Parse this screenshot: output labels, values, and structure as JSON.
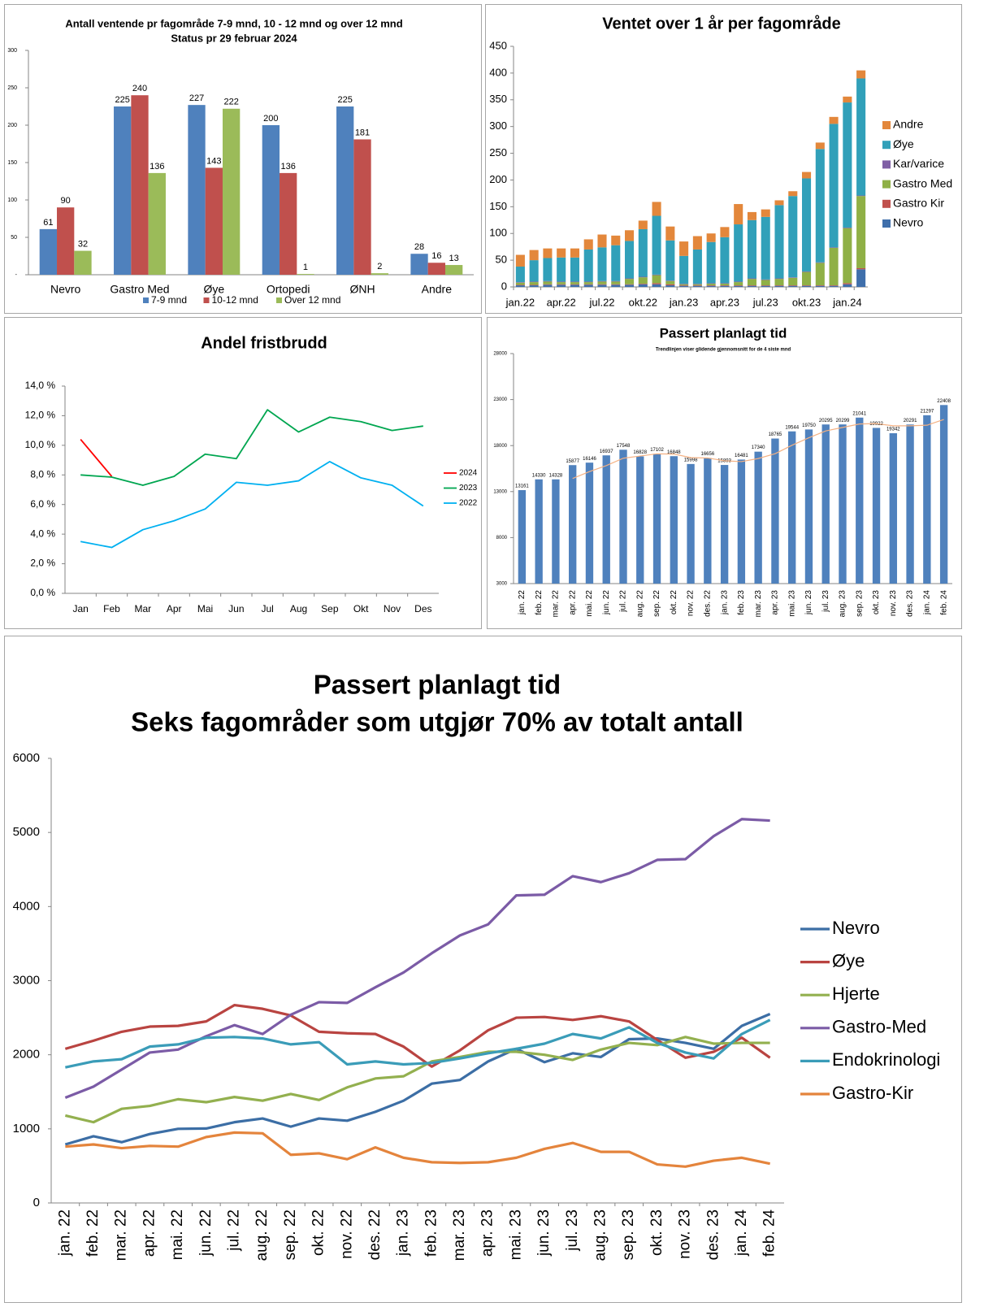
{
  "chart_data": [
    {
      "type": "bar",
      "title": "Antall ventende pr fagområde 7-9 mnd, 10 - 12 mnd og over 12 mnd",
      "subtitle": "Status pr 29 februar 2024",
      "categories": [
        "Nevro",
        "Gastro Med",
        "Øye",
        "Ortopedi",
        "ØNH",
        "Andre"
      ],
      "series": [
        {
          "name": "7-9 mnd",
          "color": "#4f81bd",
          "values": [
            61,
            225,
            227,
            200,
            225,
            28
          ]
        },
        {
          "name": "10-12 mnd",
          "color": "#c0504d",
          "values": [
            90,
            240,
            143,
            136,
            181,
            16
          ]
        },
        {
          "name": "Over 12 mnd",
          "color": "#9bbb59",
          "values": [
            32,
            136,
            222,
            1,
            2,
            13
          ]
        }
      ],
      "ylim": [
        0,
        300
      ],
      "yticks": [
        {
          "value": 0,
          "label": "-"
        },
        50,
        100,
        150,
        200,
        250,
        300
      ],
      "data_labels": true,
      "legend": "bottom"
    },
    {
      "type": "bar",
      "stacked": true,
      "title": "Ventet over 1 år per fagområde",
      "categories": [
        "jan.22",
        null,
        null,
        "apr.22",
        null,
        null,
        "jul.22",
        null,
        null,
        "okt.22",
        null,
        null,
        "jan.23",
        null,
        null,
        "apr.23",
        null,
        null,
        "jul.23",
        null,
        null,
        "okt.23",
        null,
        null,
        "jan.24",
        null
      ],
      "series": [
        {
          "name": "Nevro",
          "color": "#3f6fab",
          "values": [
            3,
            3,
            4,
            4,
            4,
            4,
            4,
            4,
            4,
            5,
            5,
            3,
            2,
            2,
            2,
            2,
            2,
            2,
            2,
            2,
            2,
            2,
            2,
            2,
            5,
            33
          ]
        },
        {
          "name": "Gastro Kir",
          "color": "#c0504d",
          "values": [
            1,
            1,
            1,
            1,
            1,
            1,
            1,
            1,
            1,
            1,
            2,
            2,
            1,
            1,
            1,
            1,
            1,
            1,
            1,
            1,
            1,
            1,
            1,
            1,
            2,
            2
          ]
        },
        {
          "name": "Gastro Med",
          "color": "#8fb046",
          "values": [
            4,
            5,
            5,
            4,
            4,
            4,
            5,
            5,
            10,
            12,
            15,
            6,
            2,
            2,
            3,
            3,
            6,
            12,
            10,
            12,
            14,
            25,
            42,
            70,
            103,
            135
          ]
        },
        {
          "name": "Kar/varice",
          "color": "#7f5fa5",
          "values": [
            1,
            1,
            1,
            1,
            1,
            1,
            1,
            1,
            1,
            1,
            1,
            1,
            1,
            1,
            1,
            1,
            1,
            1,
            1,
            1,
            1,
            1,
            1,
            1,
            1,
            1
          ]
        },
        {
          "name": "Øye",
          "color": "#31a0b9",
          "values": [
            29,
            40,
            43,
            45,
            45,
            60,
            63,
            67,
            70,
            89,
            110,
            75,
            52,
            64,
            77,
            86,
            107,
            109,
            117,
            137,
            152,
            174,
            212,
            231,
            234,
            219
          ]
        },
        {
          "name": "Andre",
          "color": "#e3873b",
          "values": [
            22,
            19,
            18,
            17,
            17,
            19,
            24,
            18,
            20,
            16,
            26,
            26,
            27,
            25,
            16,
            19,
            38,
            15,
            14,
            9,
            9,
            12,
            12,
            13,
            11,
            15
          ]
        }
      ],
      "ylim": [
        0,
        450
      ],
      "yticks": [
        0,
        50,
        100,
        150,
        200,
        250,
        300,
        350,
        400,
        450
      ],
      "legend": "right"
    },
    {
      "type": "line",
      "title": "Andel fristbrudd",
      "categories": [
        "Jan",
        "Feb",
        "Mar",
        "Apr",
        "Mai",
        "Jun",
        "Jul",
        "Aug",
        "Sep",
        "Okt",
        "Nov",
        "Des"
      ],
      "series": [
        {
          "name": "2024",
          "color": "#ff0000",
          "values": [
            10.4,
            7.9,
            null,
            null,
            null,
            null,
            null,
            null,
            null,
            null,
            null,
            null
          ]
        },
        {
          "name": "2023",
          "color": "#00a650",
          "values": [
            8.0,
            7.85,
            7.3,
            7.9,
            9.4,
            9.1,
            12.4,
            10.9,
            11.9,
            11.6,
            11.0,
            11.3
          ]
        },
        {
          "name": "2022",
          "color": "#00b0f0",
          "values": [
            3.5,
            3.1,
            4.3,
            4.9,
            5.7,
            7.5,
            7.3,
            7.6,
            8.9,
            7.8,
            7.3,
            5.9
          ]
        }
      ],
      "ylim": [
        0,
        14
      ],
      "yticks": [
        {
          "value": 0,
          "label": "0,0 %"
        },
        {
          "value": 2,
          "label": "2,0 %"
        },
        {
          "value": 4,
          "label": "4,0 %"
        },
        {
          "value": 6,
          "label": "6,0 %"
        },
        {
          "value": 8,
          "label": "8,0 %"
        },
        {
          "value": 10,
          "label": "10,0 %"
        },
        {
          "value": 12,
          "label": "12,0 %"
        },
        {
          "value": 14,
          "label": "14,0 %"
        }
      ],
      "legend": "right"
    },
    {
      "type": "bar",
      "title": "Passert planlagt tid",
      "subtitle": "Trendlinjen viser glidende gjennomsnitt for de 4 siste mnd",
      "categories": [
        "jan. 22",
        "feb. 22",
        "mar. 22",
        "apr. 22",
        "mai. 22",
        "jun. 22",
        "jul. 22",
        "aug. 22",
        "sep. 22",
        "okt. 22",
        "nov. 22",
        "des. 22",
        "jan. 23",
        "feb. 23",
        "mar. 23",
        "apr. 23",
        "mai. 23",
        "jun. 23",
        "jul. 23",
        "aug. 23",
        "sep. 23",
        "okt. 23",
        "nov. 23",
        "des. 23",
        "jan. 24",
        "feb. 24"
      ],
      "values": [
        13161,
        14330,
        14328,
        15877,
        16146,
        16937,
        17548,
        16828,
        17102,
        16848,
        15998,
        16656,
        15893,
        16481,
        17340,
        18765,
        19544,
        19750,
        20295,
        20299,
        21041,
        19922,
        19342,
        20291,
        21297,
        22408
      ],
      "color": "#4f81bd",
      "trend": {
        "color": "#f4b183",
        "values": [
          null,
          null,
          null,
          14424,
          15170,
          15822,
          16627,
          16865,
          17104,
          17082,
          16694,
          16651,
          16349,
          16257,
          16593,
          17120,
          18033,
          18850,
          19589,
          19972,
          20346,
          20389,
          20151,
          20149,
          20213,
          20835
        ]
      },
      "ylim": [
        3000,
        28000
      ],
      "yticks": [
        3000,
        8000,
        13000,
        18000,
        23000,
        28000
      ],
      "data_labels": true
    },
    {
      "type": "line",
      "title": "Passert planlagt tid",
      "subtitle": "Seks fagområder som utgjør 70% av totalt antall",
      "categories": [
        "jan. 22",
        "feb. 22",
        "mar. 22",
        "apr. 22",
        "mai. 22",
        "jun. 22",
        "jul. 22",
        "aug. 22",
        "sep. 22",
        "okt. 22",
        "nov. 22",
        "des. 22",
        "jan. 23",
        "feb. 23",
        "mar. 23",
        "apr. 23",
        "mai. 23",
        "jun. 23",
        "jul. 23",
        "aug. 23",
        "sep. 23",
        "okt. 23",
        "nov. 23",
        "des. 23",
        "jan. 24",
        "feb. 24"
      ],
      "series": [
        {
          "name": "Nevro",
          "color": "#3c6ea5",
          "values": [
            790,
            900,
            820,
            930,
            1000,
            1005,
            1090,
            1140,
            1030,
            1140,
            1110,
            1230,
            1380,
            1610,
            1660,
            1910,
            2080,
            1900,
            2020,
            1970,
            2210,
            2220,
            2160,
            2080,
            2390,
            2550
          ]
        },
        {
          "name": "Øye",
          "color": "#b94441",
          "values": [
            2080,
            2190,
            2310,
            2380,
            2390,
            2450,
            2670,
            2620,
            2530,
            2310,
            2290,
            2280,
            2110,
            1840,
            2060,
            2330,
            2500,
            2510,
            2470,
            2520,
            2450,
            2200,
            1960,
            2040,
            2230,
            1960
          ]
        },
        {
          "name": "Hjerte",
          "color": "#93b04f",
          "values": [
            1180,
            1090,
            1270,
            1310,
            1400,
            1360,
            1430,
            1380,
            1470,
            1390,
            1560,
            1680,
            1710,
            1910,
            1970,
            2040,
            2040,
            2000,
            1930,
            2070,
            2160,
            2130,
            2240,
            2150,
            2160,
            2160
          ]
        },
        {
          "name": "Gastro-Med",
          "color": "#7b5ba6",
          "values": [
            1420,
            1570,
            1800,
            2030,
            2070,
            2250,
            2400,
            2280,
            2540,
            2710,
            2700,
            2910,
            3110,
            3370,
            3610,
            3760,
            4150,
            4160,
            4410,
            4330,
            4450,
            4630,
            4640,
            4950,
            5180,
            5160
          ]
        },
        {
          "name": "Endokrinologi",
          "color": "#3a9cb8",
          "values": [
            1830,
            1910,
            1940,
            2110,
            2140,
            2230,
            2240,
            2220,
            2140,
            2170,
            1870,
            1910,
            1870,
            1890,
            1950,
            2020,
            2080,
            2150,
            2280,
            2220,
            2370,
            2160,
            2030,
            1950,
            2280,
            2470
          ]
        },
        {
          "name": "Gastro-Kir",
          "color": "#e4843c",
          "values": [
            760,
            790,
            740,
            770,
            760,
            890,
            950,
            940,
            650,
            670,
            590,
            750,
            610,
            550,
            540,
            550,
            610,
            730,
            810,
            690,
            690,
            520,
            490,
            570,
            610,
            530
          ]
        }
      ],
      "ylim": [
        0,
        6000
      ],
      "yticks": [
        0,
        1000,
        2000,
        3000,
        4000,
        5000,
        6000
      ],
      "legend": "right"
    }
  ]
}
